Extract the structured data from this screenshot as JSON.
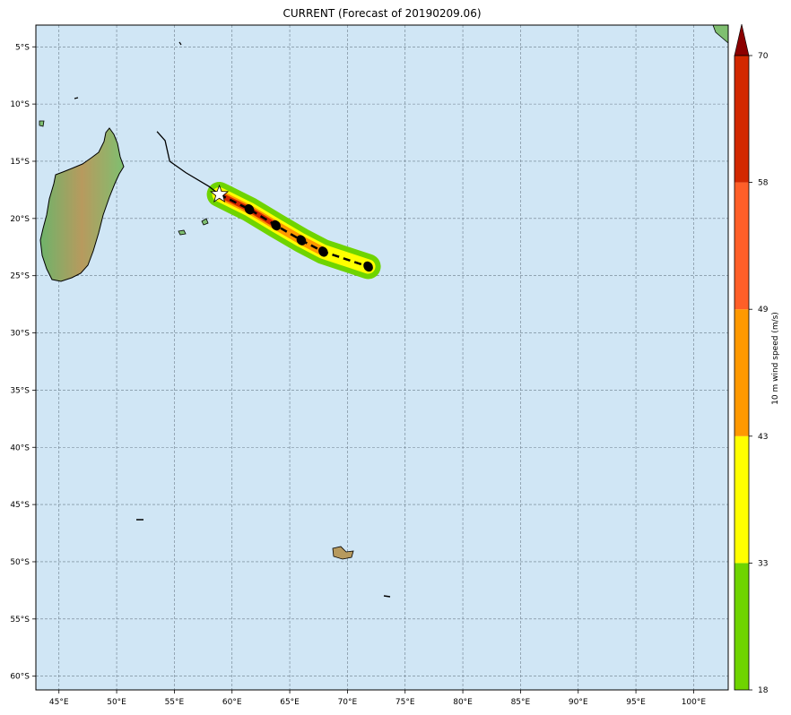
{
  "title": "CURRENT (Forecast of 20190209.06)",
  "map": {
    "lon_range": [
      43,
      103
    ],
    "lat_range": [
      -61.2,
      -3.1
    ],
    "lon_ticks": [
      "45°E",
      "50°E",
      "55°E",
      "60°E",
      "65°E",
      "70°E",
      "75°E",
      "80°E",
      "85°E",
      "90°E",
      "95°E",
      "100°E"
    ],
    "lat_ticks": [
      "5°S",
      "10°S",
      "15°S",
      "20°S",
      "25°S",
      "30°S",
      "35°S",
      "40°S",
      "45°S",
      "50°S",
      "55°S",
      "60°S"
    ],
    "ocean_color": "#d0e6f5",
    "grid": true
  },
  "colorbar": {
    "label": "10 m wind speed (m/s)",
    "ticks": [
      "18",
      "33",
      "43",
      "49",
      "58",
      "70"
    ],
    "colors": [
      "#6fd400",
      "#ffff00",
      "#ff9900",
      "#ff5f28",
      "#d22800"
    ],
    "extend_color": "#8b0000"
  },
  "track": {
    "past": [
      [
        53.5,
        -12.4
      ],
      [
        54.2,
        -13.2
      ],
      [
        54.6,
        -15.0
      ],
      [
        56.0,
        -16.0
      ],
      [
        58.0,
        -17.2
      ],
      [
        58.9,
        -17.9
      ]
    ],
    "forecast": [
      [
        58.9,
        -17.9
      ],
      [
        61.5,
        -19.2
      ],
      [
        63.8,
        -20.6
      ],
      [
        66.0,
        -21.9
      ],
      [
        67.9,
        -22.9
      ],
      [
        71.8,
        -24.2
      ]
    ],
    "forecast_points": [
      [
        61.5,
        -19.2
      ],
      [
        63.8,
        -20.6
      ],
      [
        66.0,
        -21.9
      ],
      [
        67.9,
        -22.9
      ],
      [
        71.8,
        -24.2
      ]
    ],
    "current_position": [
      58.9,
      -17.9
    ]
  }
}
